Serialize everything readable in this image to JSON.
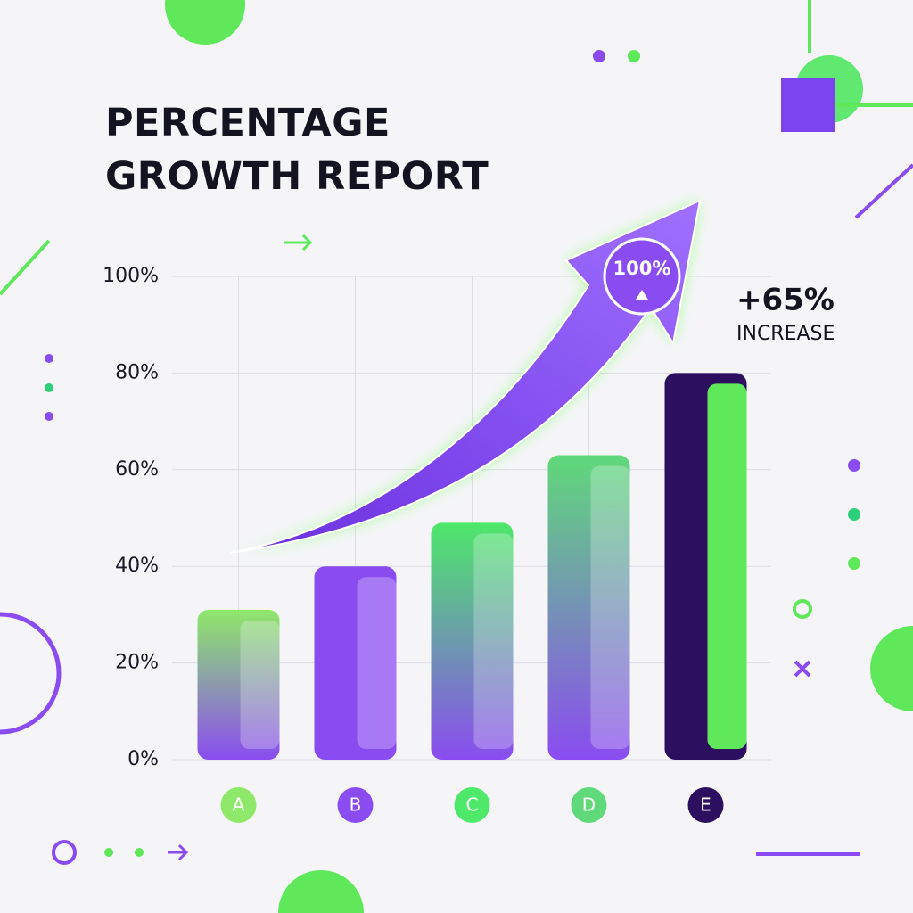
{
  "chart_data": {
    "type": "bar",
    "title": "PERCENTAGE GROWTH REPORT",
    "categories": [
      "A",
      "B",
      "C",
      "D",
      "E"
    ],
    "values": [
      31,
      40,
      49,
      63,
      80
    ],
    "colors": [
      "#8ee86a",
      "#8a4cf0",
      "#4ee86a",
      "#5fd97a",
      "#2c0f5e"
    ],
    "ylim": [
      0,
      100
    ],
    "yticks": [
      {
        "value": 0,
        "label": "0%"
      },
      {
        "value": 20,
        "label": "20%"
      },
      {
        "value": 40,
        "label": "40%"
      },
      {
        "value": 60,
        "label": "60%"
      },
      {
        "value": 80,
        "label": "80%"
      },
      {
        "value": 100,
        "label": "100%"
      }
    ],
    "grid": true,
    "annotations": {
      "badge": "100%",
      "change": "+65%",
      "change_label": "INCREASE"
    }
  }
}
